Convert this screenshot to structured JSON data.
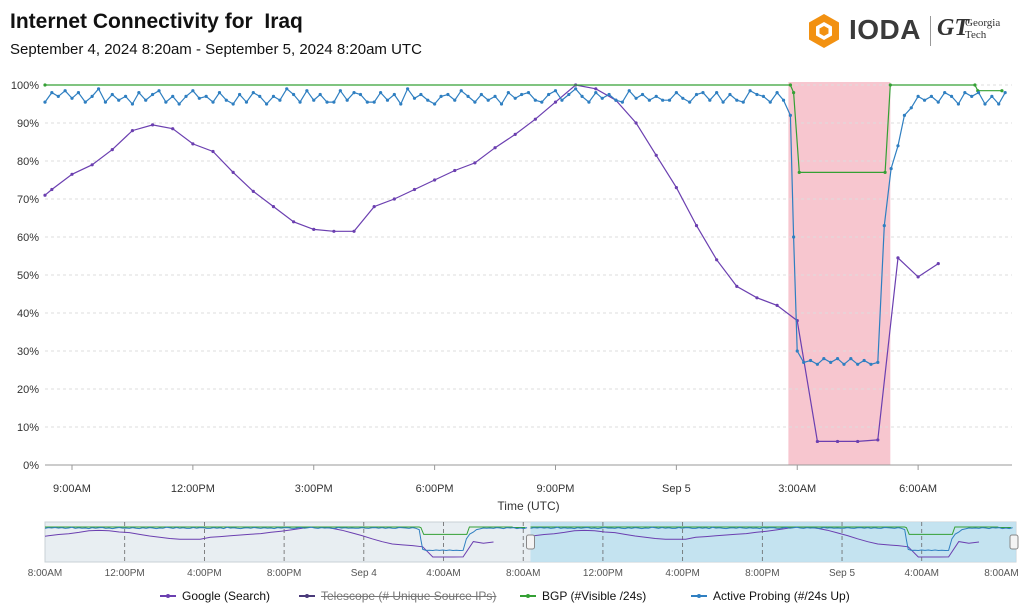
{
  "header": {
    "title": "Internet Connectivity for  Iraq",
    "subtitle": "September 4, 2024 8:20am - September 5, 2024 8:20am UTC"
  },
  "logo": {
    "name": "IODA",
    "partner_mark": "GT",
    "partner_name": "Georgia",
    "partner_name2": "Tech",
    "accent_color": "#f29111"
  },
  "legend": [
    {
      "label": "Google (Search)",
      "color": "#6b3fb0",
      "hidden": false
    },
    {
      "label": "Telescope (# Unique Source IPs)",
      "color": "#4a3a7a",
      "hidden": true
    },
    {
      "label": "BGP (#Visible /24s)",
      "color": "#34a034",
      "hidden": false
    },
    {
      "label": "Active Probing (#/24s Up)",
      "color": "#2f7fc1",
      "hidden": false
    }
  ],
  "chart_data": {
    "type": "line",
    "xlabel": "Time (UTC)",
    "ylabel": "",
    "x_range_hours": [
      0,
      24
    ],
    "x_start": "September 4, 2024 8:20am UTC",
    "x_ticks": [
      {
        "t": 0.67,
        "label": "9:00AM"
      },
      {
        "t": 3.67,
        "label": "12:00PM"
      },
      {
        "t": 6.67,
        "label": "3:00PM"
      },
      {
        "t": 9.67,
        "label": "6:00PM"
      },
      {
        "t": 12.67,
        "label": "9:00PM"
      },
      {
        "t": 15.67,
        "label": "Sep 5"
      },
      {
        "t": 18.67,
        "label": "3:00AM"
      },
      {
        "t": 21.67,
        "label": "6:00AM"
      }
    ],
    "y_ticks": [
      "0%",
      "10%",
      "20%",
      "30%",
      "40%",
      "50%",
      "60%",
      "70%",
      "80%",
      "90%",
      "100%"
    ],
    "ylim": [
      0,
      100
    ],
    "grid": true,
    "highlight": {
      "start_hour": 18.45,
      "end_hour": 20.98,
      "color": "#f7c6cf"
    },
    "series": [
      {
        "name": "Google (Search)",
        "color": "#6b3fb0",
        "points": [
          [
            0,
            71
          ],
          [
            0.17,
            72.5
          ],
          [
            0.67,
            76.5
          ],
          [
            1.17,
            79
          ],
          [
            1.67,
            83
          ],
          [
            2.17,
            88
          ],
          [
            2.67,
            89.5
          ],
          [
            3.17,
            88.5
          ],
          [
            3.67,
            84.5
          ],
          [
            4.17,
            82.5
          ],
          [
            4.67,
            77
          ],
          [
            5.17,
            72
          ],
          [
            5.67,
            68
          ],
          [
            6.17,
            64
          ],
          [
            6.67,
            62
          ],
          [
            7.17,
            61.5
          ],
          [
            7.67,
            61.5
          ],
          [
            8.17,
            68
          ],
          [
            8.67,
            70
          ],
          [
            9.17,
            72.5
          ],
          [
            9.67,
            75
          ],
          [
            10.17,
            77.5
          ],
          [
            10.67,
            79.5
          ],
          [
            11.17,
            83.5
          ],
          [
            11.67,
            87
          ],
          [
            12.17,
            91
          ],
          [
            12.67,
            95.5
          ],
          [
            13.17,
            100
          ],
          [
            13.67,
            99
          ],
          [
            14.17,
            96
          ],
          [
            14.67,
            90
          ],
          [
            15.17,
            81.5
          ],
          [
            15.67,
            73
          ],
          [
            16.17,
            63
          ],
          [
            16.67,
            54
          ],
          [
            17.17,
            47
          ],
          [
            17.67,
            44
          ],
          [
            18.17,
            42
          ],
          [
            18.67,
            38
          ],
          [
            19.17,
            6.2
          ],
          [
            19.67,
            6.2
          ],
          [
            20.17,
            6.2
          ],
          [
            20.67,
            6.6
          ],
          [
            21.17,
            54.5
          ],
          [
            21.67,
            49.5
          ],
          [
            22.17,
            53
          ]
        ]
      },
      {
        "name": "BGP (#Visible /24s)",
        "color": "#34a034",
        "points": [
          [
            0,
            100
          ],
          [
            18.5,
            100
          ],
          [
            18.58,
            98
          ],
          [
            18.72,
            77
          ],
          [
            20.85,
            77
          ],
          [
            20.98,
            100
          ],
          [
            23.08,
            100
          ],
          [
            23.15,
            98.5
          ],
          [
            23.75,
            98.5
          ]
        ]
      },
      {
        "name": "Active Probing (#/24s Up)",
        "color": "#2f7fc1",
        "points": [
          [
            0,
            95.5
          ],
          [
            0.17,
            98
          ],
          [
            0.33,
            97
          ],
          [
            0.5,
            98.5
          ],
          [
            0.67,
            96.5
          ],
          [
            0.83,
            98
          ],
          [
            1,
            95.5
          ],
          [
            1.17,
            97
          ],
          [
            1.33,
            99
          ],
          [
            1.5,
            95.5
          ],
          [
            1.67,
            97.5
          ],
          [
            1.83,
            96
          ],
          [
            2,
            97
          ],
          [
            2.17,
            95
          ],
          [
            2.33,
            98
          ],
          [
            2.5,
            96
          ],
          [
            2.67,
            97.5
          ],
          [
            2.83,
            98.5
          ],
          [
            3,
            95.5
          ],
          [
            3.17,
            97
          ],
          [
            3.33,
            95
          ],
          [
            3.5,
            97
          ],
          [
            3.67,
            98.5
          ],
          [
            3.83,
            96.5
          ],
          [
            4,
            97
          ],
          [
            4.17,
            95.5
          ],
          [
            4.33,
            98
          ],
          [
            4.5,
            96
          ],
          [
            4.67,
            95
          ],
          [
            4.83,
            97.5
          ],
          [
            5,
            95.5
          ],
          [
            5.17,
            98
          ],
          [
            5.33,
            97
          ],
          [
            5.5,
            95
          ],
          [
            5.67,
            97
          ],
          [
            5.83,
            96
          ],
          [
            6,
            99
          ],
          [
            6.17,
            97.5
          ],
          [
            6.33,
            95.5
          ],
          [
            6.5,
            98.5
          ],
          [
            6.67,
            96
          ],
          [
            6.83,
            97.5
          ],
          [
            7,
            95.5
          ],
          [
            7.17,
            95.5
          ],
          [
            7.33,
            98.5
          ],
          [
            7.5,
            96
          ],
          [
            7.67,
            98
          ],
          [
            7.83,
            97.5
          ],
          [
            8,
            95.5
          ],
          [
            8.17,
            95.5
          ],
          [
            8.33,
            98
          ],
          [
            8.5,
            96
          ],
          [
            8.67,
            97.5
          ],
          [
            8.83,
            95
          ],
          [
            9,
            99
          ],
          [
            9.17,
            96.5
          ],
          [
            9.33,
            97.5
          ],
          [
            9.5,
            96
          ],
          [
            9.67,
            95
          ],
          [
            9.83,
            97
          ],
          [
            10,
            97.5
          ],
          [
            10.17,
            96
          ],
          [
            10.33,
            98.5
          ],
          [
            10.5,
            97
          ],
          [
            10.67,
            95.5
          ],
          [
            10.83,
            97.5
          ],
          [
            11,
            96
          ],
          [
            11.17,
            97
          ],
          [
            11.33,
            95
          ],
          [
            11.5,
            98
          ],
          [
            11.67,
            96.5
          ],
          [
            11.83,
            97.5
          ],
          [
            12,
            98
          ],
          [
            12.17,
            96
          ],
          [
            12.33,
            95.5
          ],
          [
            12.5,
            97.5
          ],
          [
            12.67,
            98.5
          ],
          [
            12.83,
            96
          ],
          [
            13,
            97.5
          ],
          [
            13.17,
            99
          ],
          [
            13.33,
            97
          ],
          [
            13.5,
            95.5
          ],
          [
            13.67,
            98
          ],
          [
            13.83,
            96.5
          ],
          [
            14,
            97.5
          ],
          [
            14.17,
            96
          ],
          [
            14.33,
            95.5
          ],
          [
            14.5,
            98.5
          ],
          [
            14.67,
            96.5
          ],
          [
            14.83,
            97.5
          ],
          [
            15,
            96
          ],
          [
            15.17,
            97
          ],
          [
            15.33,
            96
          ],
          [
            15.5,
            96
          ],
          [
            15.67,
            98
          ],
          [
            15.83,
            96.5
          ],
          [
            16,
            95.5
          ],
          [
            16.17,
            97.5
          ],
          [
            16.33,
            98
          ],
          [
            16.5,
            96
          ],
          [
            16.67,
            98
          ],
          [
            16.83,
            95.5
          ],
          [
            17,
            97.5
          ],
          [
            17.17,
            96
          ],
          [
            17.33,
            95.5
          ],
          [
            17.5,
            98.5
          ],
          [
            17.67,
            97.5
          ],
          [
            17.83,
            97
          ],
          [
            18,
            95.5
          ],
          [
            18.17,
            98
          ],
          [
            18.33,
            96
          ],
          [
            18.5,
            92
          ],
          [
            18.58,
            60
          ],
          [
            18.67,
            30
          ],
          [
            18.83,
            27
          ],
          [
            19,
            27.5
          ],
          [
            19.17,
            26.5
          ],
          [
            19.33,
            28
          ],
          [
            19.5,
            27
          ],
          [
            19.67,
            28
          ],
          [
            19.83,
            26.5
          ],
          [
            20,
            28
          ],
          [
            20.17,
            26.5
          ],
          [
            20.33,
            27.5
          ],
          [
            20.5,
            26.5
          ],
          [
            20.67,
            27
          ],
          [
            20.83,
            63
          ],
          [
            21,
            78
          ],
          [
            21.17,
            84
          ],
          [
            21.33,
            92
          ],
          [
            21.5,
            94
          ],
          [
            21.67,
            97
          ],
          [
            21.83,
            96
          ],
          [
            22,
            97
          ],
          [
            22.17,
            95.5
          ],
          [
            22.33,
            98
          ],
          [
            22.5,
            97
          ],
          [
            22.67,
            95
          ],
          [
            22.83,
            98
          ],
          [
            23,
            97
          ],
          [
            23.17,
            98
          ],
          [
            23.33,
            95
          ],
          [
            23.5,
            97
          ],
          [
            23.67,
            95
          ],
          [
            23.83,
            98
          ]
        ]
      }
    ],
    "navigator": {
      "x_labels": [
        "8:00AM",
        "12:00PM",
        "4:00PM",
        "8:00PM",
        "Sep 4",
        "4:00AM",
        "8:00AM",
        "12:00PM",
        "4:00PM",
        "8:00PM",
        "Sep 5",
        "4:00AM",
        "8:00AM"
      ],
      "selected_fraction": [
        0.5,
        1.0
      ]
    }
  }
}
